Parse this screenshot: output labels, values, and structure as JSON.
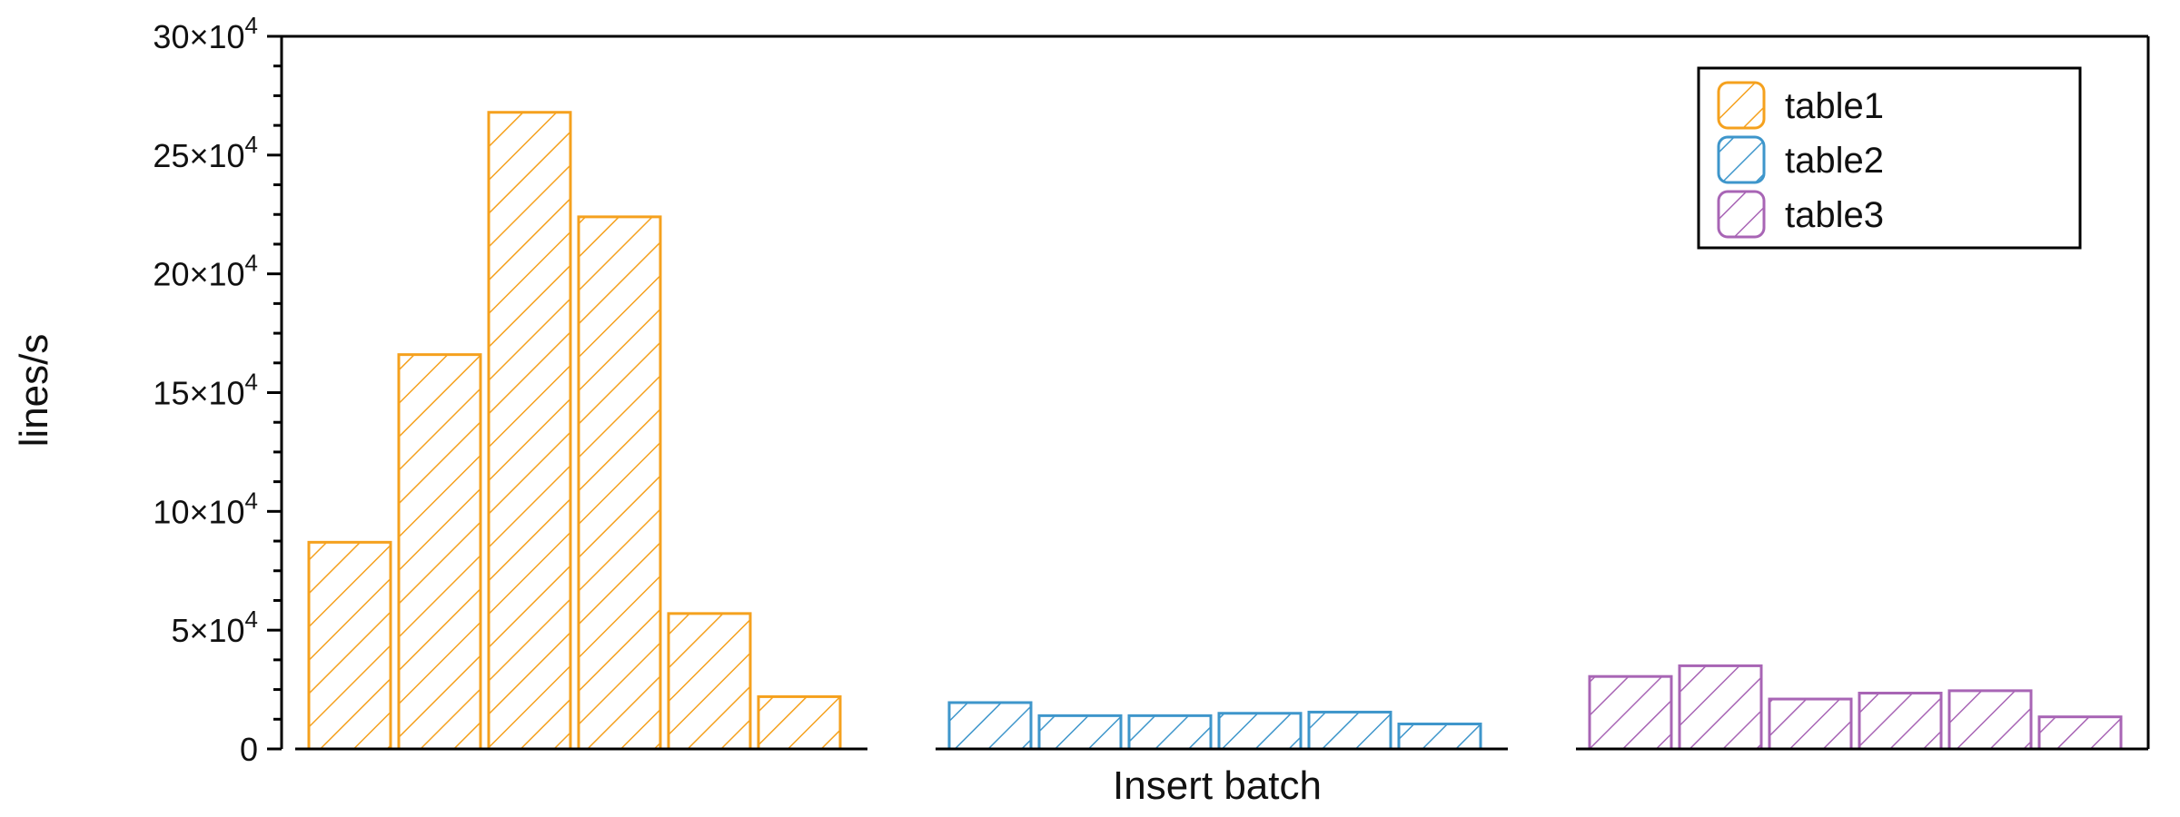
{
  "chart_data": {
    "type": "bar",
    "xlabel": "Insert batch",
    "ylabel": "lines/s",
    "ylim": [
      0,
      300000
    ],
    "y_ticks": [
      {
        "value": 0,
        "base": "0",
        "exp": ""
      },
      {
        "value": 50000,
        "base": "5×10",
        "exp": "4"
      },
      {
        "value": 100000,
        "base": "10×10",
        "exp": "4"
      },
      {
        "value": 150000,
        "base": "15×10",
        "exp": "4"
      },
      {
        "value": 200000,
        "base": "20×10",
        "exp": "4"
      },
      {
        "value": 250000,
        "base": "25×10",
        "exp": "4"
      },
      {
        "value": 300000,
        "base": "30×10",
        "exp": "4"
      }
    ],
    "legend_position": "top-right",
    "grid": false,
    "hatch": "diagonal",
    "series": [
      {
        "name": "table1",
        "color": "#F5A11E",
        "values": [
          87000,
          166000,
          268000,
          224000,
          57000,
          22000
        ]
      },
      {
        "name": "table2",
        "color": "#3E96CB",
        "values": [
          19500,
          14000,
          14000,
          15000,
          15500,
          10500
        ]
      },
      {
        "name": "table3",
        "color": "#A865B5",
        "values": [
          30500,
          35000,
          21000,
          23500,
          24500,
          13500
        ]
      }
    ]
  }
}
